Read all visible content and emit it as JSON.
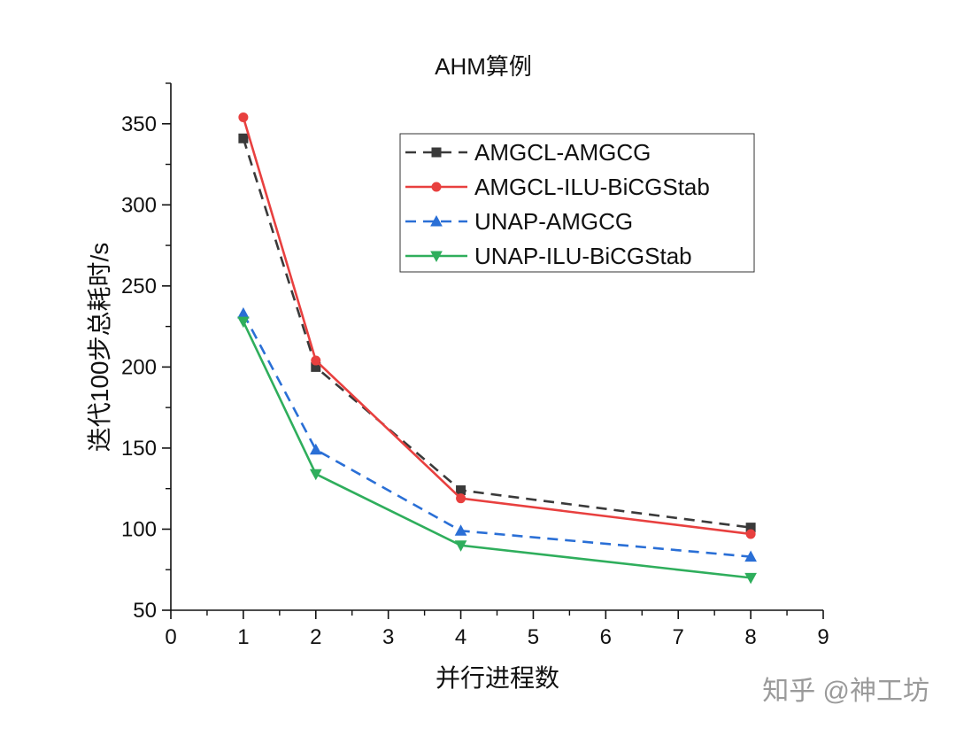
{
  "chart_data": {
    "type": "line",
    "title": "AHM算例",
    "xlabel": "并行进程数",
    "ylabel": "迭代100步总耗时/s",
    "xlim": [
      0,
      9
    ],
    "ylim": [
      50,
      375
    ],
    "x_tick_labels": [
      "0",
      "1",
      "2",
      "3",
      "4",
      "5",
      "6",
      "7",
      "8",
      "9"
    ],
    "y_ticks": [
      50,
      100,
      150,
      200,
      250,
      300,
      350
    ],
    "x": [
      1,
      2,
      4,
      8
    ],
    "series": [
      {
        "name": "AMGCL-AMGCG",
        "color": "#3a3a3a",
        "dash": "dashed",
        "marker": "square",
        "values": [
          341,
          200,
          124,
          101
        ]
      },
      {
        "name": "AMGCL-ILU-BiCGStab",
        "color": "#e8403f",
        "dash": "solid",
        "marker": "circle",
        "values": [
          354,
          204,
          119,
          97
        ]
      },
      {
        "name": "UNAP-AMGCG",
        "color": "#2a6fd6",
        "dash": "dashed",
        "marker": "triangle-up",
        "values": [
          233,
          149,
          99,
          83
        ]
      },
      {
        "name": "UNAP-ILU-BiCGStab",
        "color": "#2fae5c",
        "dash": "solid",
        "marker": "triangle-down",
        "values": [
          228,
          134,
          90,
          70
        ]
      }
    ],
    "legend_position": "top-right",
    "grid": false
  },
  "watermark": {
    "text": "知乎 @神工坊"
  }
}
